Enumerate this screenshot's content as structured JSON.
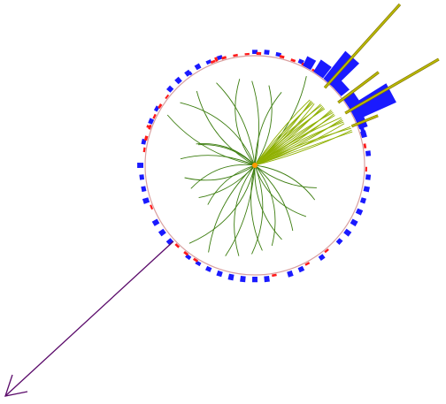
{
  "display": {
    "background": "#ffffff",
    "colors": {
      "ecal": "#ff1a1a",
      "hcal": "#1a1aff",
      "track": "#3c7d0f",
      "jet_track": "#8fb000",
      "jet_axis": "#b8b800",
      "jet_axis_outline": "#7a6a00",
      "met_arrow": "#5a0a6a",
      "vertex": "#ff9900",
      "detector_circle": "#d9a0a0"
    },
    "icons": [
      "met-arrow-icon"
    ]
  }
}
